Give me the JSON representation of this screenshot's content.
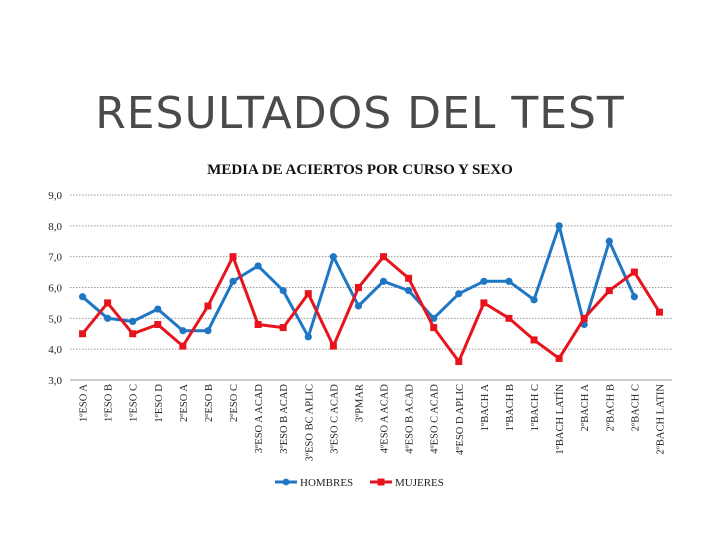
{
  "slide": {
    "title": "RESULTADOS DEL TEST"
  },
  "chart_data": {
    "type": "line",
    "title": "MEDIA DE ACIERTOS POR CURSO Y SEXO",
    "ylim": [
      3,
      9
    ],
    "yticks": [
      "3,0",
      "4,0",
      "5,0",
      "6,0",
      "7,0",
      "8,0",
      "9,0"
    ],
    "grid": true,
    "legend": "bottom",
    "categories": [
      "1ºESO A",
      "1ºESO B",
      "1ºESO C",
      "1ºESO D",
      "2ºESO A",
      "2ºESO B",
      "2ºESO C",
      "3ºESO A ACAD",
      "3ºESO B ACAD",
      "3ºESO BC APLIC",
      "3ºESO C ACAD",
      "3ºPMAR",
      "4ºESO A ACAD",
      "4ºESO B ACAD",
      "4ºESO C ACAD",
      "4ºESO D APLIC",
      "1ºBACH A",
      "1ºBACH B",
      "1ºBACH C",
      "1ºBACH LATÍN",
      "2ºBACH A",
      "2ºBACH B",
      "2ºBACH C",
      "2ºBACH LATIN"
    ],
    "series": [
      {
        "name": "HOMBRES",
        "color": "#1f77c4",
        "values": [
          5.7,
          5.0,
          4.9,
          5.3,
          4.6,
          4.6,
          6.2,
          6.7,
          5.9,
          4.4,
          7.0,
          5.4,
          6.2,
          5.9,
          5.0,
          5.8,
          6.2,
          6.2,
          5.6,
          8.0,
          4.8,
          7.5,
          5.7,
          null
        ]
      },
      {
        "name": "MUJERES",
        "color": "#e8141d",
        "values": [
          4.5,
          5.5,
          4.5,
          4.8,
          4.1,
          5.4,
          7.0,
          4.8,
          4.7,
          5.8,
          4.1,
          6.0,
          7.0,
          6.3,
          4.7,
          3.6,
          5.5,
          5.0,
          4.3,
          3.7,
          5.0,
          5.9,
          6.5,
          5.2
        ]
      }
    ]
  }
}
